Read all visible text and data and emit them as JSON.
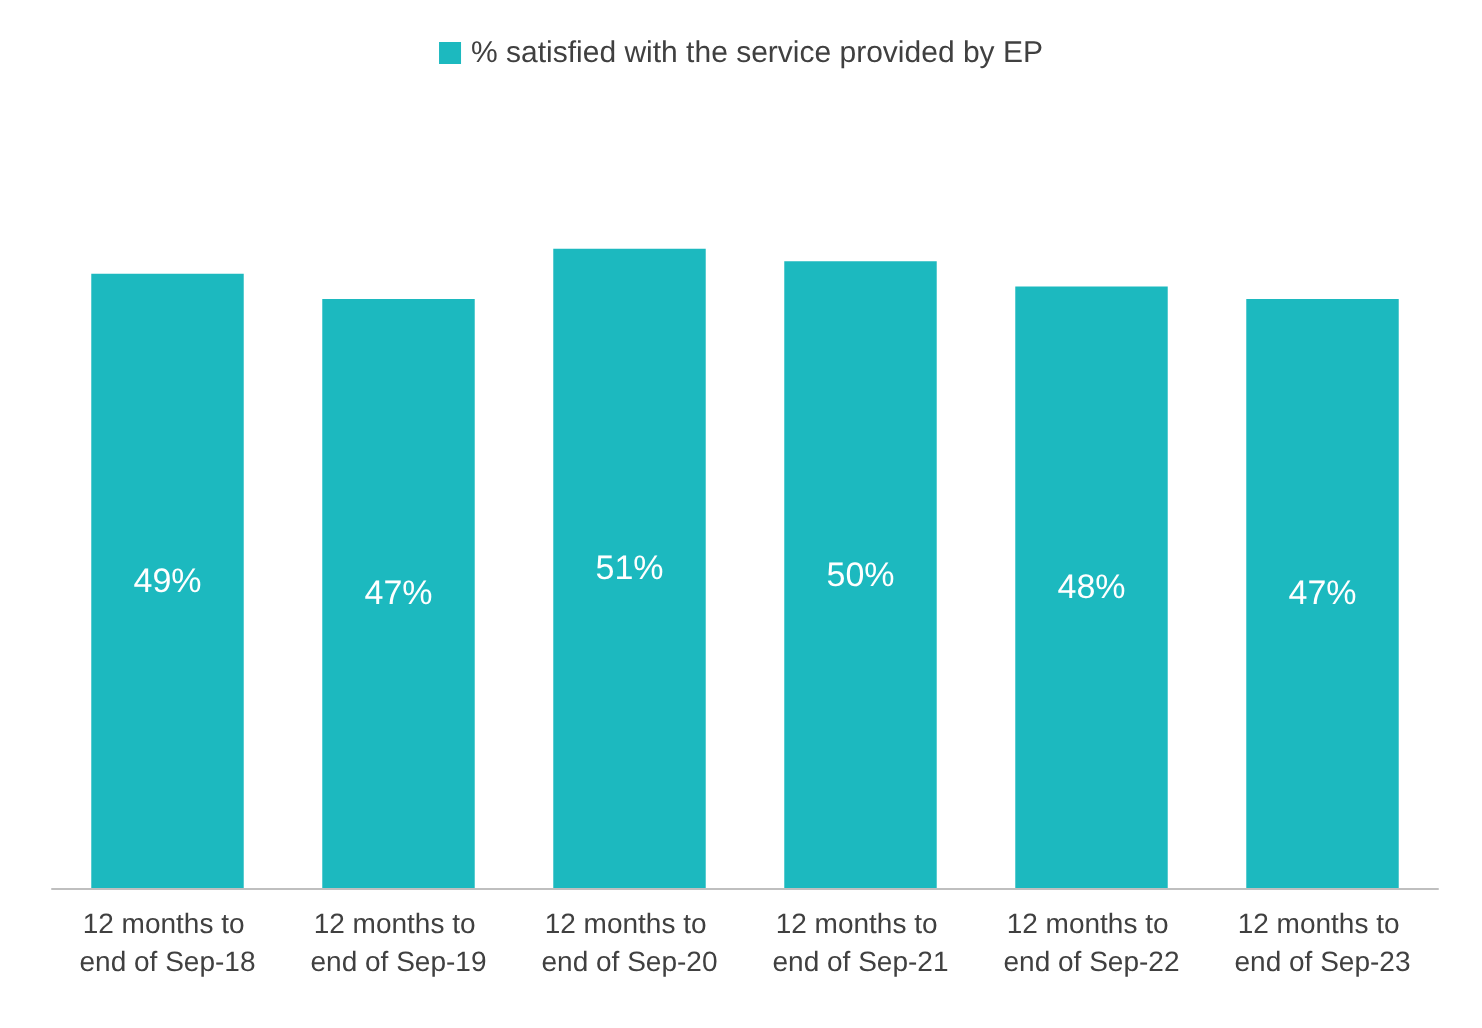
{
  "chart_data": {
    "type": "bar",
    "categories": [
      "12 months to end of Sep-18",
      "12 months to end of Sep-19",
      "12 months to end of Sep-20",
      "12 months to end of Sep-21",
      "12 months to end of Sep-22",
      "12 months to end of Sep-23"
    ],
    "series": [
      {
        "name": "% satisfied with the service provided by EP",
        "color": "#1cb9bf",
        "values": [
          49,
          47,
          51,
          50,
          48,
          47
        ],
        "value_labels": [
          "49%",
          "47%",
          "51%",
          "50%",
          "48%",
          "47%"
        ]
      }
    ],
    "legend": "top"
  }
}
